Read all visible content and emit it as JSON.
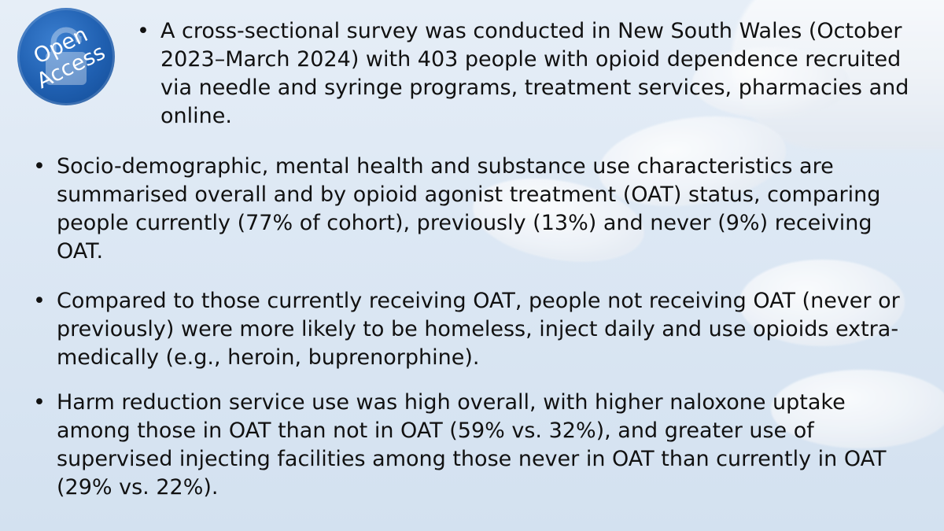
{
  "badge": {
    "line1": "Open",
    "line2": "Access",
    "icon": "lock-icon",
    "color": "#1f5fb0"
  },
  "bullet_glyph": "•",
  "bullets": [
    "A cross-sectional survey was conducted in New South Wales (October 2023–March 2024) with 403 people with opioid dependence recruited via needle and syringe programs, treatment services, pharmacies and online.",
    "Socio-demographic, mental health and substance use characteristics are summarised overall and by opioid agonist treatment (OAT) status, comparing people currently (77% of cohort), previously (13%) and never (9%) receiving OAT.",
    "Compared to those currently receiving OAT, people not receiving OAT (never or previously) were more likely to be homeless, inject daily and use opioids extra-medically (e.g., heroin, buprenorphine).",
    "Harm reduction service use was high overall, with higher naloxone uptake among those in OAT than not in OAT (59% vs. 32%), and greater use of supervised injecting facilities among those never in OAT than currently in OAT (29% vs. 22%)."
  ]
}
